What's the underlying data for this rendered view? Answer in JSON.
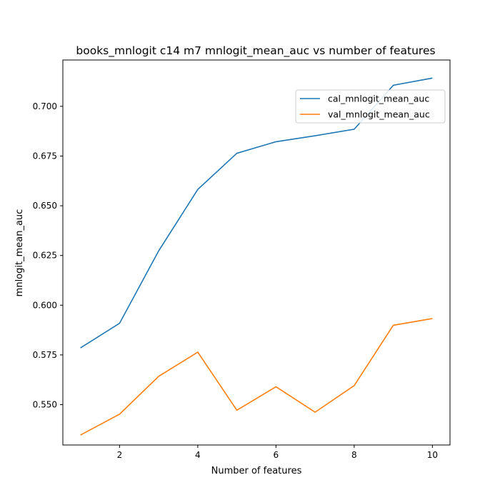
{
  "chart_data": {
    "type": "line",
    "title": "books_mnlogit c14 m7 mnlogit_mean_auc vs number of features",
    "xlabel": "Number of features",
    "ylabel": "mnlogit_mean_auc",
    "x": [
      1,
      2,
      3,
      4,
      5,
      6,
      7,
      8,
      9,
      10
    ],
    "xlim": [
      0.55,
      10.45
    ],
    "ylim": [
      0.5297,
      0.7233
    ],
    "xticks": [
      2,
      4,
      6,
      8,
      10
    ],
    "xtick_labels": [
      "2",
      "4",
      "6",
      "8",
      "10"
    ],
    "yticks": [
      0.55,
      0.575,
      0.6,
      0.625,
      0.65,
      0.675,
      0.7
    ],
    "ytick_labels": [
      "0.550",
      "0.575",
      "0.600",
      "0.625",
      "0.650",
      "0.675",
      "0.700"
    ],
    "grid": false,
    "legend_position": "upper-right",
    "series": [
      {
        "name": "cal_mnlogit_mean_auc",
        "color": "#1f77b4",
        "values": [
          0.5785,
          0.5909,
          0.6273,
          0.6582,
          0.6764,
          0.6822,
          0.6852,
          0.6885,
          0.7106,
          0.7142
        ]
      },
      {
        "name": "val_mnlogit_mean_auc",
        "color": "#ff7f0e",
        "values": [
          0.5347,
          0.5452,
          0.5642,
          0.5764,
          0.5472,
          0.559,
          0.5462,
          0.5596,
          0.5899,
          0.5933
        ]
      }
    ]
  }
}
